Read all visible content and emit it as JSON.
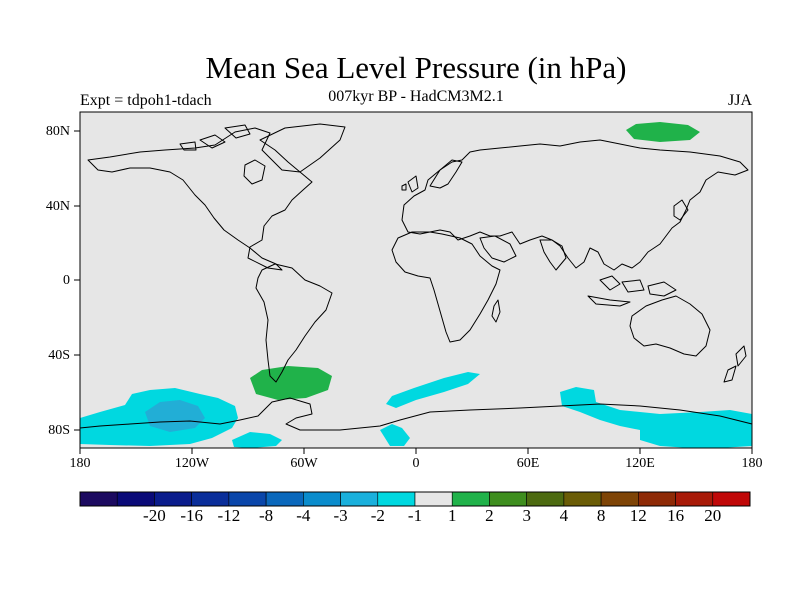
{
  "title": "Mean Sea Level Pressure (in hPa)",
  "subtitle": "007kyr BP - HadCM3M2.1",
  "experiment": "Expt = tdpoh1-tdach",
  "season": "JJA",
  "colors": {
    "background_field": "#e6e6e6",
    "negative_anomaly": "#00d8e0",
    "negative_anomaly_strong": "#22aed6",
    "positive_anomaly": "#20b24a",
    "coastline": "#000000"
  },
  "axes": {
    "y_ticks": [
      {
        "label": "80N",
        "lat": 80
      },
      {
        "label": "40N",
        "lat": 40
      },
      {
        "label": "0",
        "lat": 0
      },
      {
        "label": "40S",
        "lat": -40
      },
      {
        "label": "80S",
        "lat": -80
      }
    ],
    "x_ticks": [
      {
        "label": "180",
        "lon": -180
      },
      {
        "label": "120W",
        "lon": -120
      },
      {
        "label": "60W",
        "lon": -60
      },
      {
        "label": "0",
        "lon": 0
      },
      {
        "label": "60E",
        "lon": 60
      },
      {
        "label": "120E",
        "lon": 120
      },
      {
        "label": "180",
        "lon": 180
      }
    ]
  },
  "colorbar": {
    "colors": [
      "#1c0a60",
      "#0a0a78",
      "#0a1c8c",
      "#0a2e9a",
      "#0a46aa",
      "#0a68bc",
      "#0a8ccc",
      "#1ab0dc",
      "#00d8e0",
      "#e6e6e6",
      "#20b24a",
      "#3e8e1e",
      "#4c6a10",
      "#6a5c06",
      "#7e4406",
      "#8e2a06",
      "#a81a08",
      "#c00808"
    ],
    "labels": [
      "-20",
      "-16",
      "-12",
      "-8",
      "-4",
      "-3",
      "-2",
      "-1",
      "1",
      "2",
      "3",
      "4",
      "8",
      "12",
      "16",
      "20"
    ]
  }
}
